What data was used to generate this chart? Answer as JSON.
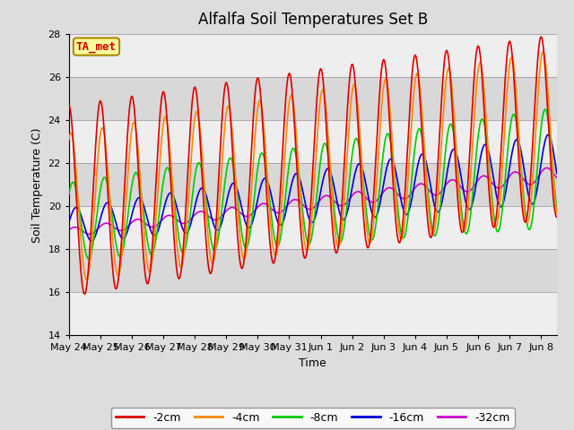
{
  "title": "Alfalfa Soil Temperatures Set B",
  "xlabel": "Time",
  "ylabel": "Soil Temperature (C)",
  "ylim": [
    14,
    28
  ],
  "xlim_days": [
    0,
    15.5
  ],
  "annotation_label": "TA_met",
  "annotation_color": "#cc0000",
  "annotation_bg": "#ffff99",
  "x_tick_labels": [
    "May 24",
    "May 25",
    "May 26",
    "May 27",
    "May 28",
    "May 29",
    "May 30",
    "May 31",
    "Jun 1",
    "Jun 2",
    "Jun 3",
    "Jun 4",
    "Jun 5",
    "Jun 6",
    "Jun 7",
    "Jun 8"
  ],
  "x_tick_positions": [
    0,
    1,
    2,
    3,
    4,
    5,
    6,
    7,
    8,
    9,
    10,
    11,
    12,
    13,
    14,
    15
  ],
  "series": {
    "-2cm": {
      "color": "#dd0000",
      "lw": 1.2
    },
    "-4cm": {
      "color": "#ff8800",
      "lw": 1.2
    },
    "-8cm": {
      "color": "#00cc00",
      "lw": 1.2
    },
    "-16cm": {
      "color": "#0000dd",
      "lw": 1.2
    },
    "-32cm": {
      "color": "#cc00cc",
      "lw": 1.2
    }
  },
  "yticks": [
    14,
    16,
    18,
    20,
    22,
    24,
    26,
    28
  ],
  "title_fontsize": 12,
  "label_fontsize": 9,
  "tick_fontsize": 8
}
